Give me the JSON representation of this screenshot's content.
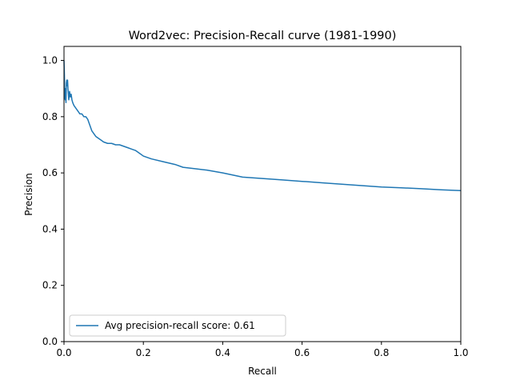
{
  "chart_data": {
    "type": "line",
    "title": "Word2vec: Precision-Recall curve (1981-1990)",
    "xlabel": "Recall",
    "ylabel": "Precision",
    "xlim": [
      0.0,
      1.0
    ],
    "ylim": [
      0.0,
      1.05
    ],
    "xticks": [
      "0.0",
      "0.2",
      "0.4",
      "0.6",
      "0.8",
      "1.0"
    ],
    "yticks": [
      "0.0",
      "0.2",
      "0.4",
      "0.6",
      "0.8",
      "1.0"
    ],
    "grid": false,
    "legend_position": "lower-left",
    "series": [
      {
        "name": "Avg precision-recall score: 0.61",
        "color": "#1f77b4",
        "x": [
          0.0,
          0.001,
          0.002,
          0.003,
          0.004,
          0.005,
          0.006,
          0.007,
          0.008,
          0.009,
          0.01,
          0.012,
          0.014,
          0.016,
          0.018,
          0.02,
          0.022,
          0.025,
          0.03,
          0.035,
          0.04,
          0.045,
          0.05,
          0.055,
          0.06,
          0.065,
          0.07,
          0.075,
          0.08,
          0.085,
          0.09,
          0.1,
          0.11,
          0.12,
          0.13,
          0.14,
          0.15,
          0.16,
          0.17,
          0.18,
          0.19,
          0.2,
          0.22,
          0.25,
          0.28,
          0.3,
          0.33,
          0.36,
          0.4,
          0.45,
          0.5,
          0.55,
          0.6,
          0.65,
          0.7,
          0.75,
          0.8,
          0.85,
          0.9,
          0.95,
          1.0
        ],
        "y": [
          1.0,
          0.95,
          0.87,
          0.86,
          0.9,
          0.85,
          0.92,
          0.93,
          0.91,
          0.93,
          0.9,
          0.86,
          0.89,
          0.87,
          0.88,
          0.86,
          0.85,
          0.84,
          0.83,
          0.82,
          0.81,
          0.81,
          0.8,
          0.8,
          0.79,
          0.77,
          0.75,
          0.74,
          0.73,
          0.725,
          0.72,
          0.71,
          0.705,
          0.705,
          0.7,
          0.7,
          0.695,
          0.69,
          0.685,
          0.68,
          0.67,
          0.66,
          0.65,
          0.64,
          0.63,
          0.62,
          0.615,
          0.61,
          0.6,
          0.585,
          0.58,
          0.575,
          0.57,
          0.565,
          0.56,
          0.555,
          0.55,
          0.547,
          0.544,
          0.54,
          0.537
        ]
      }
    ]
  }
}
